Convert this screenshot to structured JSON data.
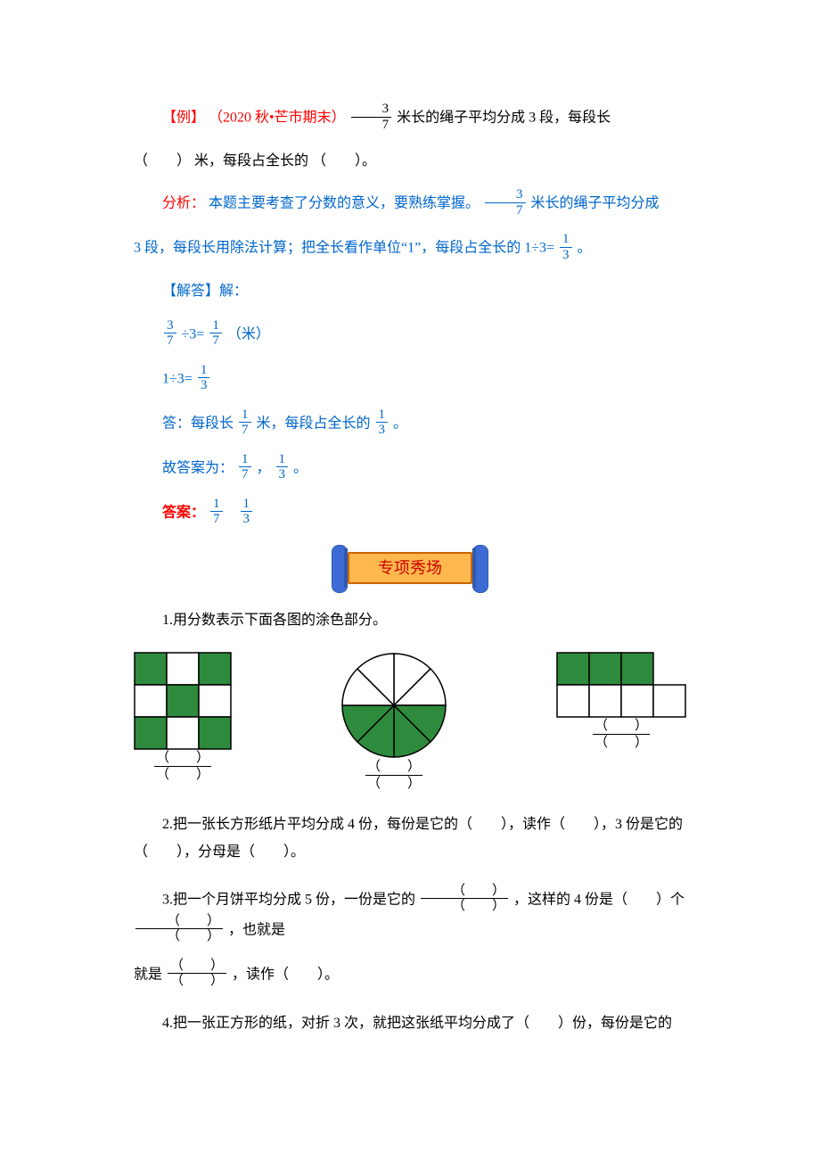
{
  "colors": {
    "blue": "#0066cc",
    "red": "#ff0000",
    "black": "#000000",
    "green": "#2e8b3d",
    "white": "#ffffff",
    "figure_border": "#000000",
    "banner_bg": "#ffb84d",
    "banner_border": "#cc6600",
    "banner_scroll": "#3d6bd6"
  },
  "example": {
    "label": "【例】",
    "source": "（2020 秋•芒市期末）",
    "frac1": {
      "num": "3",
      "den": "7"
    },
    "text1": "米长的绳子平均分成 3 段，每段长",
    "blank1": "（　　）",
    "text2": "米，每段占全长的",
    "blank2": "（　　）。"
  },
  "analysis": {
    "label": "分析：",
    "t1": "本题主要考查了分数的意义，要熟练掌握。",
    "frac": {
      "num": "3",
      "den": "7"
    },
    "t2": "米长的绳子平均分成",
    "t3": "3 段，每段长用除法计算；把全长看作单位“1”，每段占全长的 1÷3=",
    "res": {
      "num": "1",
      "den": "3"
    },
    "t4": "。"
  },
  "solution": {
    "label": "【解答】解：",
    "line1": {
      "a": {
        "num": "3",
        "den": "7"
      },
      "op": "÷3=",
      "b": {
        "num": "1",
        "den": "7"
      },
      "tail": "（米）"
    },
    "line2": {
      "lhs": "1÷3=",
      "rhs": {
        "num": "1",
        "den": "3"
      }
    },
    "ans_sentence": {
      "p1": "答：每段长",
      "f1": {
        "num": "1",
        "den": "7"
      },
      "p2": "米，每段占全长的",
      "f2": {
        "num": "1",
        "den": "3"
      },
      "p3": "。"
    },
    "so_label": "故答案为：",
    "so_f1": {
      "num": "1",
      "den": "7"
    },
    "so_sep": "，",
    "so_f2": {
      "num": "1",
      "den": "3"
    },
    "so_tail": "。",
    "answer_label": "答案：",
    "af1": {
      "num": "1",
      "den": "7"
    },
    "af2": {
      "num": "1",
      "den": "3"
    }
  },
  "banner": "专项秀场",
  "q1": {
    "text": "1.用分数表示下面各图的涂色部分。",
    "blank": {
      "num": "（　　）",
      "den": "（　　）"
    },
    "fig_a": {
      "type": "grid",
      "rows": 3,
      "cols": 3,
      "cell": 36,
      "fill_color": "#2e8b3d",
      "empty_color": "#ffffff",
      "stroke": "#000000",
      "cells": [
        [
          1,
          0,
          1
        ],
        [
          0,
          1,
          0
        ],
        [
          1,
          0,
          1
        ]
      ]
    },
    "fig_b": {
      "type": "pie",
      "r": 58,
      "slices": 8,
      "fill_color": "#2e8b3d",
      "empty_color": "#ffffff",
      "stroke": "#000000",
      "filled": [
        2,
        3,
        4,
        5
      ]
    },
    "fig_c": {
      "type": "bar_grid",
      "cell": 36,
      "stroke": "#000000",
      "fill_color": "#2e8b3d",
      "empty_color": "#ffffff",
      "top_cols": 3,
      "bottom_cols": 4,
      "top_filled": 3
    }
  },
  "q2": "2.把一张长方形纸片平均分成 4 份，每份是它的（　　），读作（　　），3 份是它的（　　），分母是（　　）。",
  "q3": {
    "p1": "3.把一个月饼平均分成 5 份，一份是它的",
    "bfrac": {
      "num": "（　　）",
      "den": "（　　）"
    },
    "p2": "，这样的 4 份是（　　）个",
    "p3": "，也就是",
    "p4": "，读作（　　）。"
  },
  "q4": "4.把一张正方形的纸，对折 3 次，就把这张纸平均分成了（　　）份，每份是它的"
}
